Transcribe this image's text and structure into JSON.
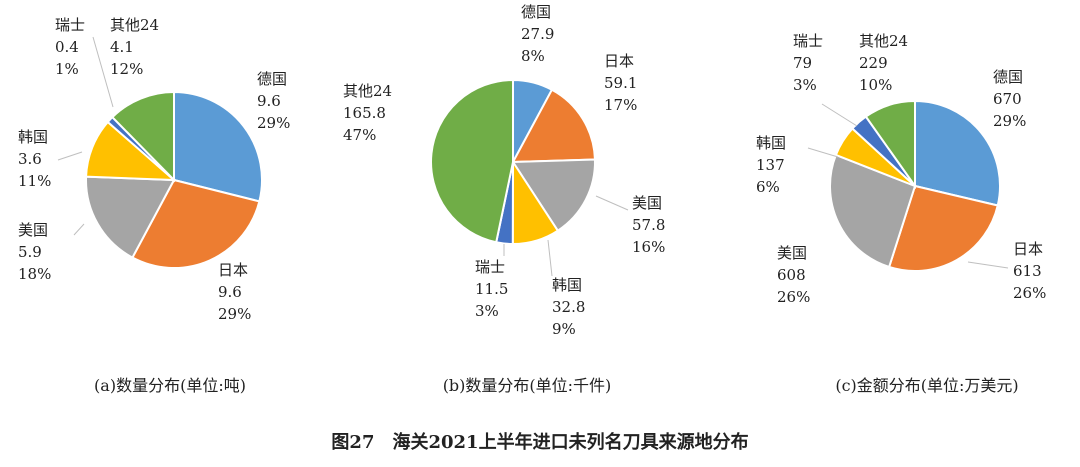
{
  "figure_title": "图27　海关2021上半年进口未列名刀具来源地分布",
  "colors": {
    "德国": "#5b9bd5",
    "日本": "#ed7d31",
    "美国": "#a5a5a5",
    "韩国": "#ffc000",
    "瑞士": "#4472c4",
    "其他24": "#70ad47"
  },
  "chart_data": [
    {
      "type": "pie",
      "caption": "(a)数量分布(单位:吨)",
      "slices": [
        {
          "name": "德国",
          "value": "9.6",
          "pct": "29%",
          "num": 9.6
        },
        {
          "name": "日本",
          "value": "9.6",
          "pct": "29%",
          "num": 9.6
        },
        {
          "name": "美国",
          "value": "5.9",
          "pct": "18%",
          "num": 5.9
        },
        {
          "name": "韩国",
          "value": "3.6",
          "pct": "11%",
          "num": 3.6
        },
        {
          "name": "瑞士",
          "value": "0.4",
          "pct": "1%",
          "num": 0.4
        },
        {
          "name": "其他24",
          "value": "4.1",
          "pct": "12%",
          "num": 4.1
        }
      ]
    },
    {
      "type": "pie",
      "caption": "(b)数量分布(单位:千件)",
      "slices": [
        {
          "name": "德国",
          "value": "27.9",
          "pct": "8%",
          "num": 27.9
        },
        {
          "name": "日本",
          "value": "59.1",
          "pct": "17%",
          "num": 59.1
        },
        {
          "name": "美国",
          "value": "57.8",
          "pct": "16%",
          "num": 57.8
        },
        {
          "name": "韩国",
          "value": "32.8",
          "pct": "9%",
          "num": 32.8
        },
        {
          "name": "瑞士",
          "value": "11.5",
          "pct": "3%",
          "num": 11.5
        },
        {
          "name": "其他24",
          "value": "165.8",
          "pct": "47%",
          "num": 165.8
        }
      ]
    },
    {
      "type": "pie",
      "caption": "(c)金额分布(单位:万美元)",
      "slices": [
        {
          "name": "德国",
          "value": "670",
          "pct": "29%",
          "num": 670
        },
        {
          "name": "日本",
          "value": "613",
          "pct": "26%",
          "num": 613
        },
        {
          "name": "美国",
          "value": "608",
          "pct": "26%",
          "num": 608
        },
        {
          "name": "韩国",
          "value": "137",
          "pct": "6%",
          "num": 137
        },
        {
          "name": "瑞士",
          "value": "79",
          "pct": "3%",
          "num": 79
        },
        {
          "name": "其他24",
          "value": "229",
          "pct": "10%",
          "num": 229
        }
      ]
    }
  ]
}
